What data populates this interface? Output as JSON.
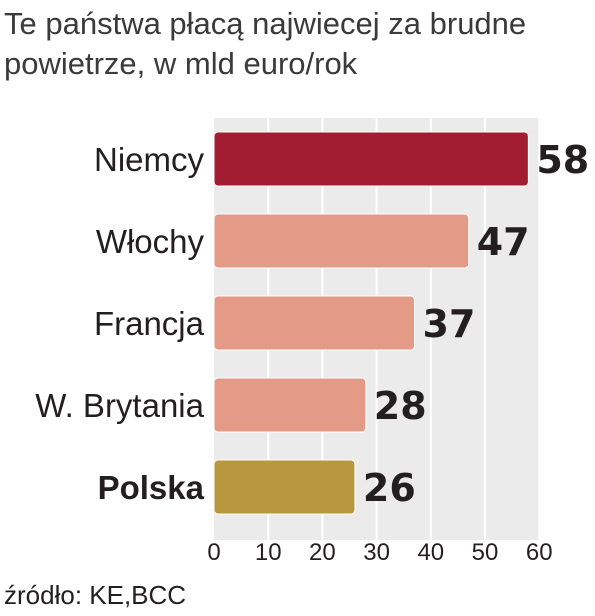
{
  "title_lines": [
    "Te państwa płacą najwiecej za brudne",
    "powietrze, w mld euro/rok"
  ],
  "source": "źródło: KE,BCC",
  "colors": {
    "highlight": "#a31d32",
    "default": "#e39a86",
    "poland": "#b8973e",
    "plot_bg": "#ebebeb",
    "grid": "#ffffff"
  },
  "chart_data": {
    "type": "bar",
    "orientation": "horizontal",
    "categories": [
      "Niemcy",
      "Włochy",
      "Francja",
      "W. Brytania",
      "Polska"
    ],
    "values": [
      58,
      47,
      37,
      28,
      26
    ],
    "bar_colors": [
      "#a31d32",
      "#e39a86",
      "#e39a86",
      "#e39a86",
      "#b8973e"
    ],
    "bold_categories": [
      "Polska"
    ],
    "xlim": [
      0,
      60
    ],
    "xticks": [
      0,
      10,
      20,
      30,
      40,
      50,
      60
    ],
    "grid": true
  }
}
